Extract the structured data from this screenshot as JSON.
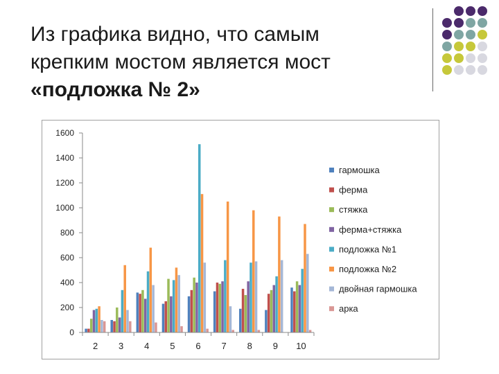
{
  "slide": {
    "title_line1": "Из графика видно, что самым",
    "title_line2": "крепким мостом является мост",
    "title_line3": "«подложка № 2»"
  },
  "decor": {
    "dot_colors": [
      "#4b2a6b",
      "#7fa6a3",
      "#c6c83a",
      "#d8d8e0"
    ]
  },
  "chart_data": {
    "type": "bar",
    "categories": [
      "2",
      "3",
      "4",
      "5",
      "6",
      "7",
      "8",
      "9",
      "10"
    ],
    "ylim": [
      0,
      1600
    ],
    "yticks": [
      0,
      200,
      400,
      600,
      800,
      1000,
      1200,
      1400,
      1600
    ],
    "legend_position": "right",
    "series": [
      {
        "name": "гармошка",
        "color": "#4f81bd",
        "values": [
          30,
          100,
          320,
          230,
          290,
          330,
          190,
          180,
          360
        ]
      },
      {
        "name": "ферма",
        "color": "#c0504d",
        "values": [
          30,
          90,
          310,
          250,
          340,
          400,
          350,
          310,
          330
        ]
      },
      {
        "name": "стяжка",
        "color": "#9bbb59",
        "values": [
          110,
          200,
          340,
          430,
          440,
          390,
          300,
          340,
          410
        ]
      },
      {
        "name": "ферма+стяжка",
        "color": "#8064a2",
        "values": [
          180,
          120,
          270,
          290,
          400,
          410,
          410,
          380,
          380
        ]
      },
      {
        "name": "подложка №1",
        "color": "#4bacc6",
        "values": [
          190,
          340,
          490,
          420,
          1510,
          580,
          560,
          450,
          510
        ]
      },
      {
        "name": "подложка №2",
        "color": "#f79646",
        "values": [
          210,
          540,
          680,
          520,
          1110,
          1050,
          980,
          930,
          870
        ]
      },
      {
        "name": "двойная гармошка",
        "color": "#a5b7d6",
        "values": [
          100,
          180,
          380,
          460,
          560,
          210,
          570,
          580,
          630
        ]
      },
      {
        "name": "арка",
        "color": "#d99795",
        "values": [
          90,
          90,
          80,
          50,
          30,
          20,
          20,
          0,
          20
        ]
      }
    ]
  }
}
